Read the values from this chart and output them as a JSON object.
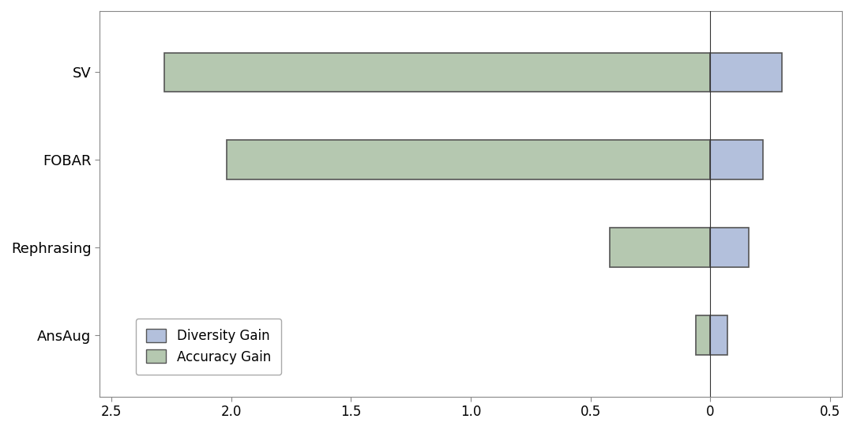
{
  "categories": [
    "SV",
    "FOBAR",
    "Rephrasing",
    "AnsAug"
  ],
  "accuracy_gain": [
    -2.28,
    -2.02,
    -0.42,
    -0.06
  ],
  "diversity_gain": [
    0.3,
    0.22,
    0.16,
    0.07
  ],
  "accuracy_color": "#b5c8b0",
  "diversity_color": "#b3c0dc",
  "edge_color": "#555555",
  "background_color": "#ffffff",
  "xlim": [
    -2.55,
    0.55
  ],
  "xticks": [
    -2.5,
    -2.0,
    -1.5,
    -1.0,
    -0.5,
    0.0,
    0.5
  ],
  "xticklabels": [
    "2.5",
    "2.0",
    "1.5",
    "1.0",
    "0.5",
    "0",
    "0.5"
  ],
  "bar_height": 0.45,
  "legend_labels": [
    "Diversity Gain",
    "Accuracy Gain"
  ],
  "legend_colors": [
    "#b3c0dc",
    "#b5c8b0"
  ],
  "figsize": [
    10.8,
    5.44
  ],
  "dpi": 100,
  "ytick_fontsize": 13,
  "xtick_fontsize": 12,
  "legend_fontsize": 12
}
